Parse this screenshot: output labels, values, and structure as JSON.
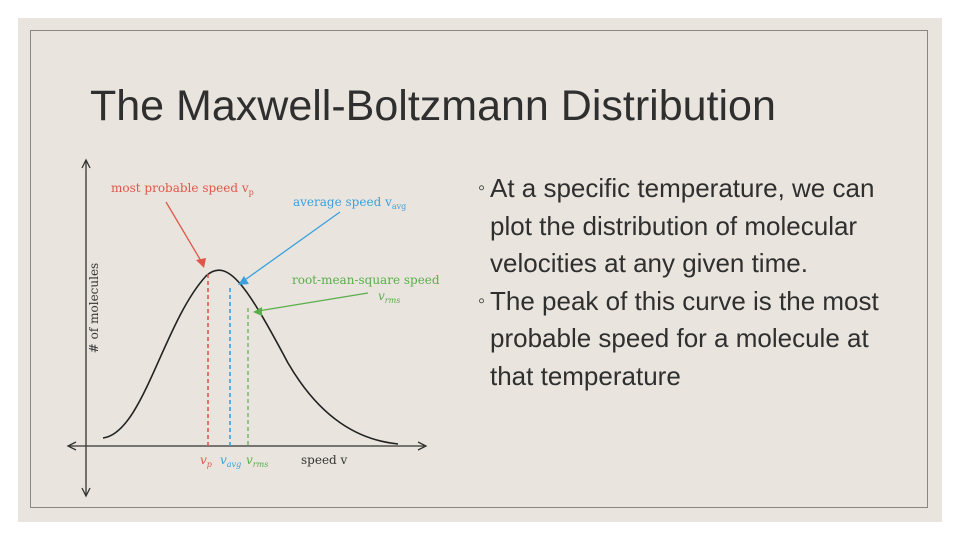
{
  "slide": {
    "title": "The Maxwell-Boltzmann Distribution",
    "bullets": [
      {
        "marker": "◦",
        "text": " At a specific temperature, we can plot the distribution of molecular velocities at any given time."
      },
      {
        "marker": "◦",
        "text": "The peak of this curve is the most probable speed for a molecule at that temperature"
      }
    ]
  },
  "diagram": {
    "y_axis_label": "# of molecules",
    "x_axis_label": "speed v",
    "labels": {
      "most_probable": "most probable speed v",
      "most_probable_sub": "p",
      "average": "average speed v",
      "average_sub": "avg",
      "rms": "root-mean-square speed",
      "rms_symbol": "v",
      "rms_sub": "rms"
    },
    "tick_labels": {
      "vp": "v",
      "vp_sub": "p",
      "vavg": "v",
      "vavg_sub": "avg",
      "vrms": "v",
      "vrms_sub": "rms"
    },
    "colors": {
      "most_probable": "#e0574a",
      "average": "#3aa0de",
      "rms": "#5aae4a",
      "curve": "#222222",
      "axis": "#333333"
    }
  }
}
